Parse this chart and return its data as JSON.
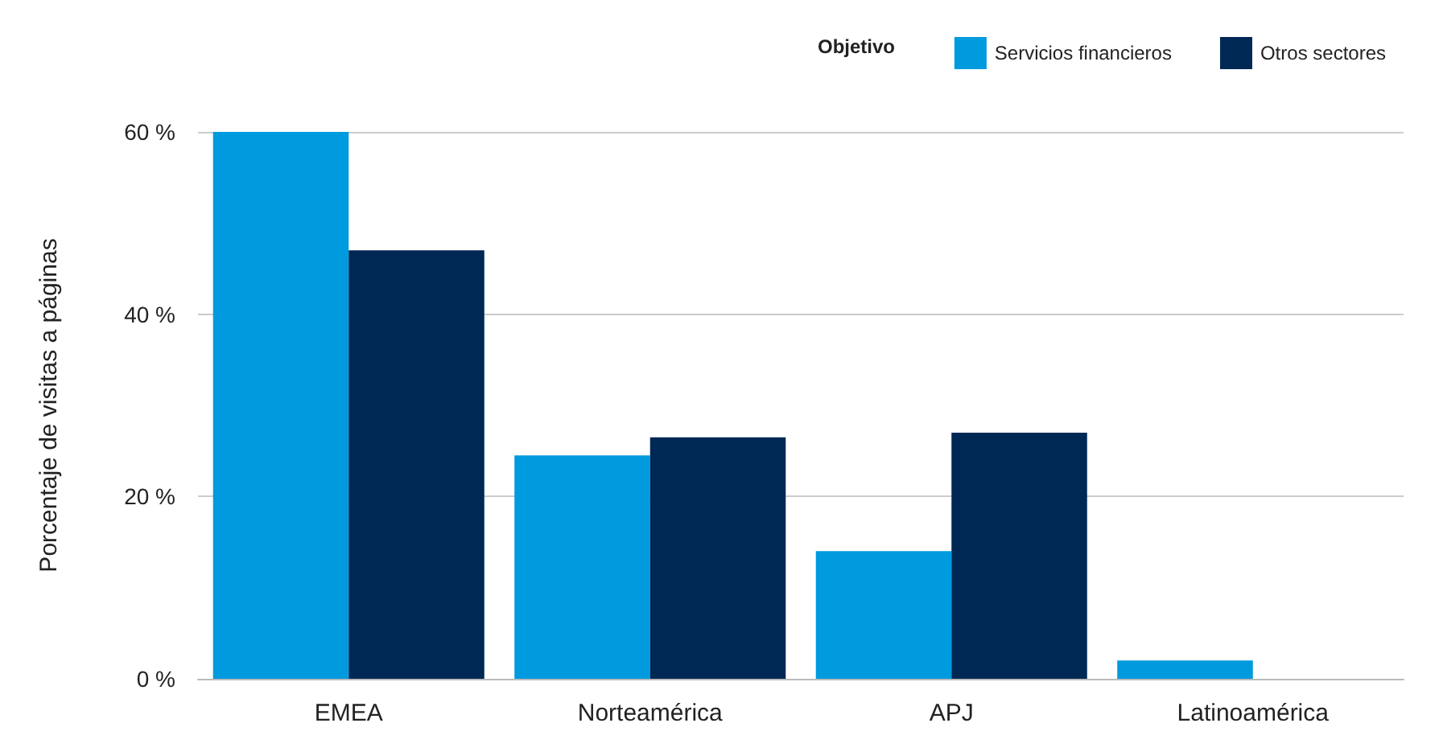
{
  "chart_data": {
    "type": "bar",
    "ylabel": "Porcentaje de visitas a páginas",
    "legend_title": "Objetivo",
    "categories": [
      "EMEA",
      "Norteamérica",
      "APJ",
      "Latinoamérica"
    ],
    "series": [
      {
        "name": "Servicios financieros",
        "color": "#009ade",
        "values": [
          60,
          24.5,
          14,
          2
        ]
      },
      {
        "name": "Otros sectores",
        "color": "#002855",
        "values": [
          47,
          26.5,
          27,
          0
        ]
      }
    ],
    "ylim": [
      0,
      60
    ],
    "yticks": [
      {
        "value": 0,
        "label": "0 %"
      },
      {
        "value": 20,
        "label": "20 %"
      },
      {
        "value": 40,
        "label": "40 %"
      },
      {
        "value": 60,
        "label": "60 %"
      }
    ],
    "grid": "y",
    "legend": "top right"
  }
}
